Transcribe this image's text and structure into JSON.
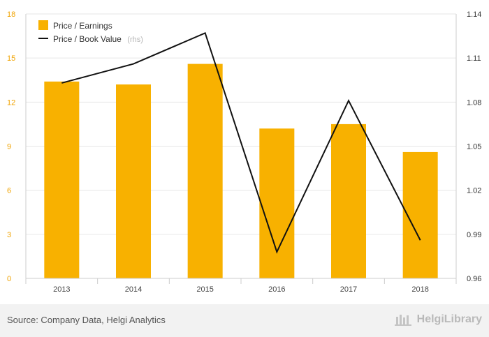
{
  "chart_data": {
    "type": "bar",
    "categories": [
      "2013",
      "2014",
      "2015",
      "2016",
      "2017",
      "2018"
    ],
    "series": [
      {
        "name": "Price / Earnings",
        "kind": "bar",
        "axis": "left",
        "values": [
          13.4,
          13.2,
          14.6,
          10.2,
          10.5,
          8.6
        ]
      },
      {
        "name": "Price / Book Value",
        "suffix": "(rhs)",
        "kind": "line",
        "axis": "right",
        "values": [
          1.093,
          1.106,
          1.127,
          0.978,
          1.081,
          0.986
        ]
      }
    ],
    "left_axis": {
      "ylim": [
        0,
        18
      ],
      "ticks": [
        "0",
        "3",
        "6",
        "9",
        "12",
        "15",
        "18"
      ]
    },
    "right_axis": {
      "ylim": [
        0.96,
        1.14
      ],
      "ticks": [
        "0.96",
        "0.99",
        "1.02",
        "1.05",
        "1.08",
        "1.11",
        "1.14"
      ]
    },
    "colors": {
      "bar": "#f8b100",
      "line": "#111111",
      "grid": "#e6e6e6"
    },
    "legend_position": "top-left"
  },
  "footer": {
    "source": "Source: Company Data, Helgi Analytics",
    "brand": "HelgiLibrary",
    "brand_icon": "library-icon"
  }
}
